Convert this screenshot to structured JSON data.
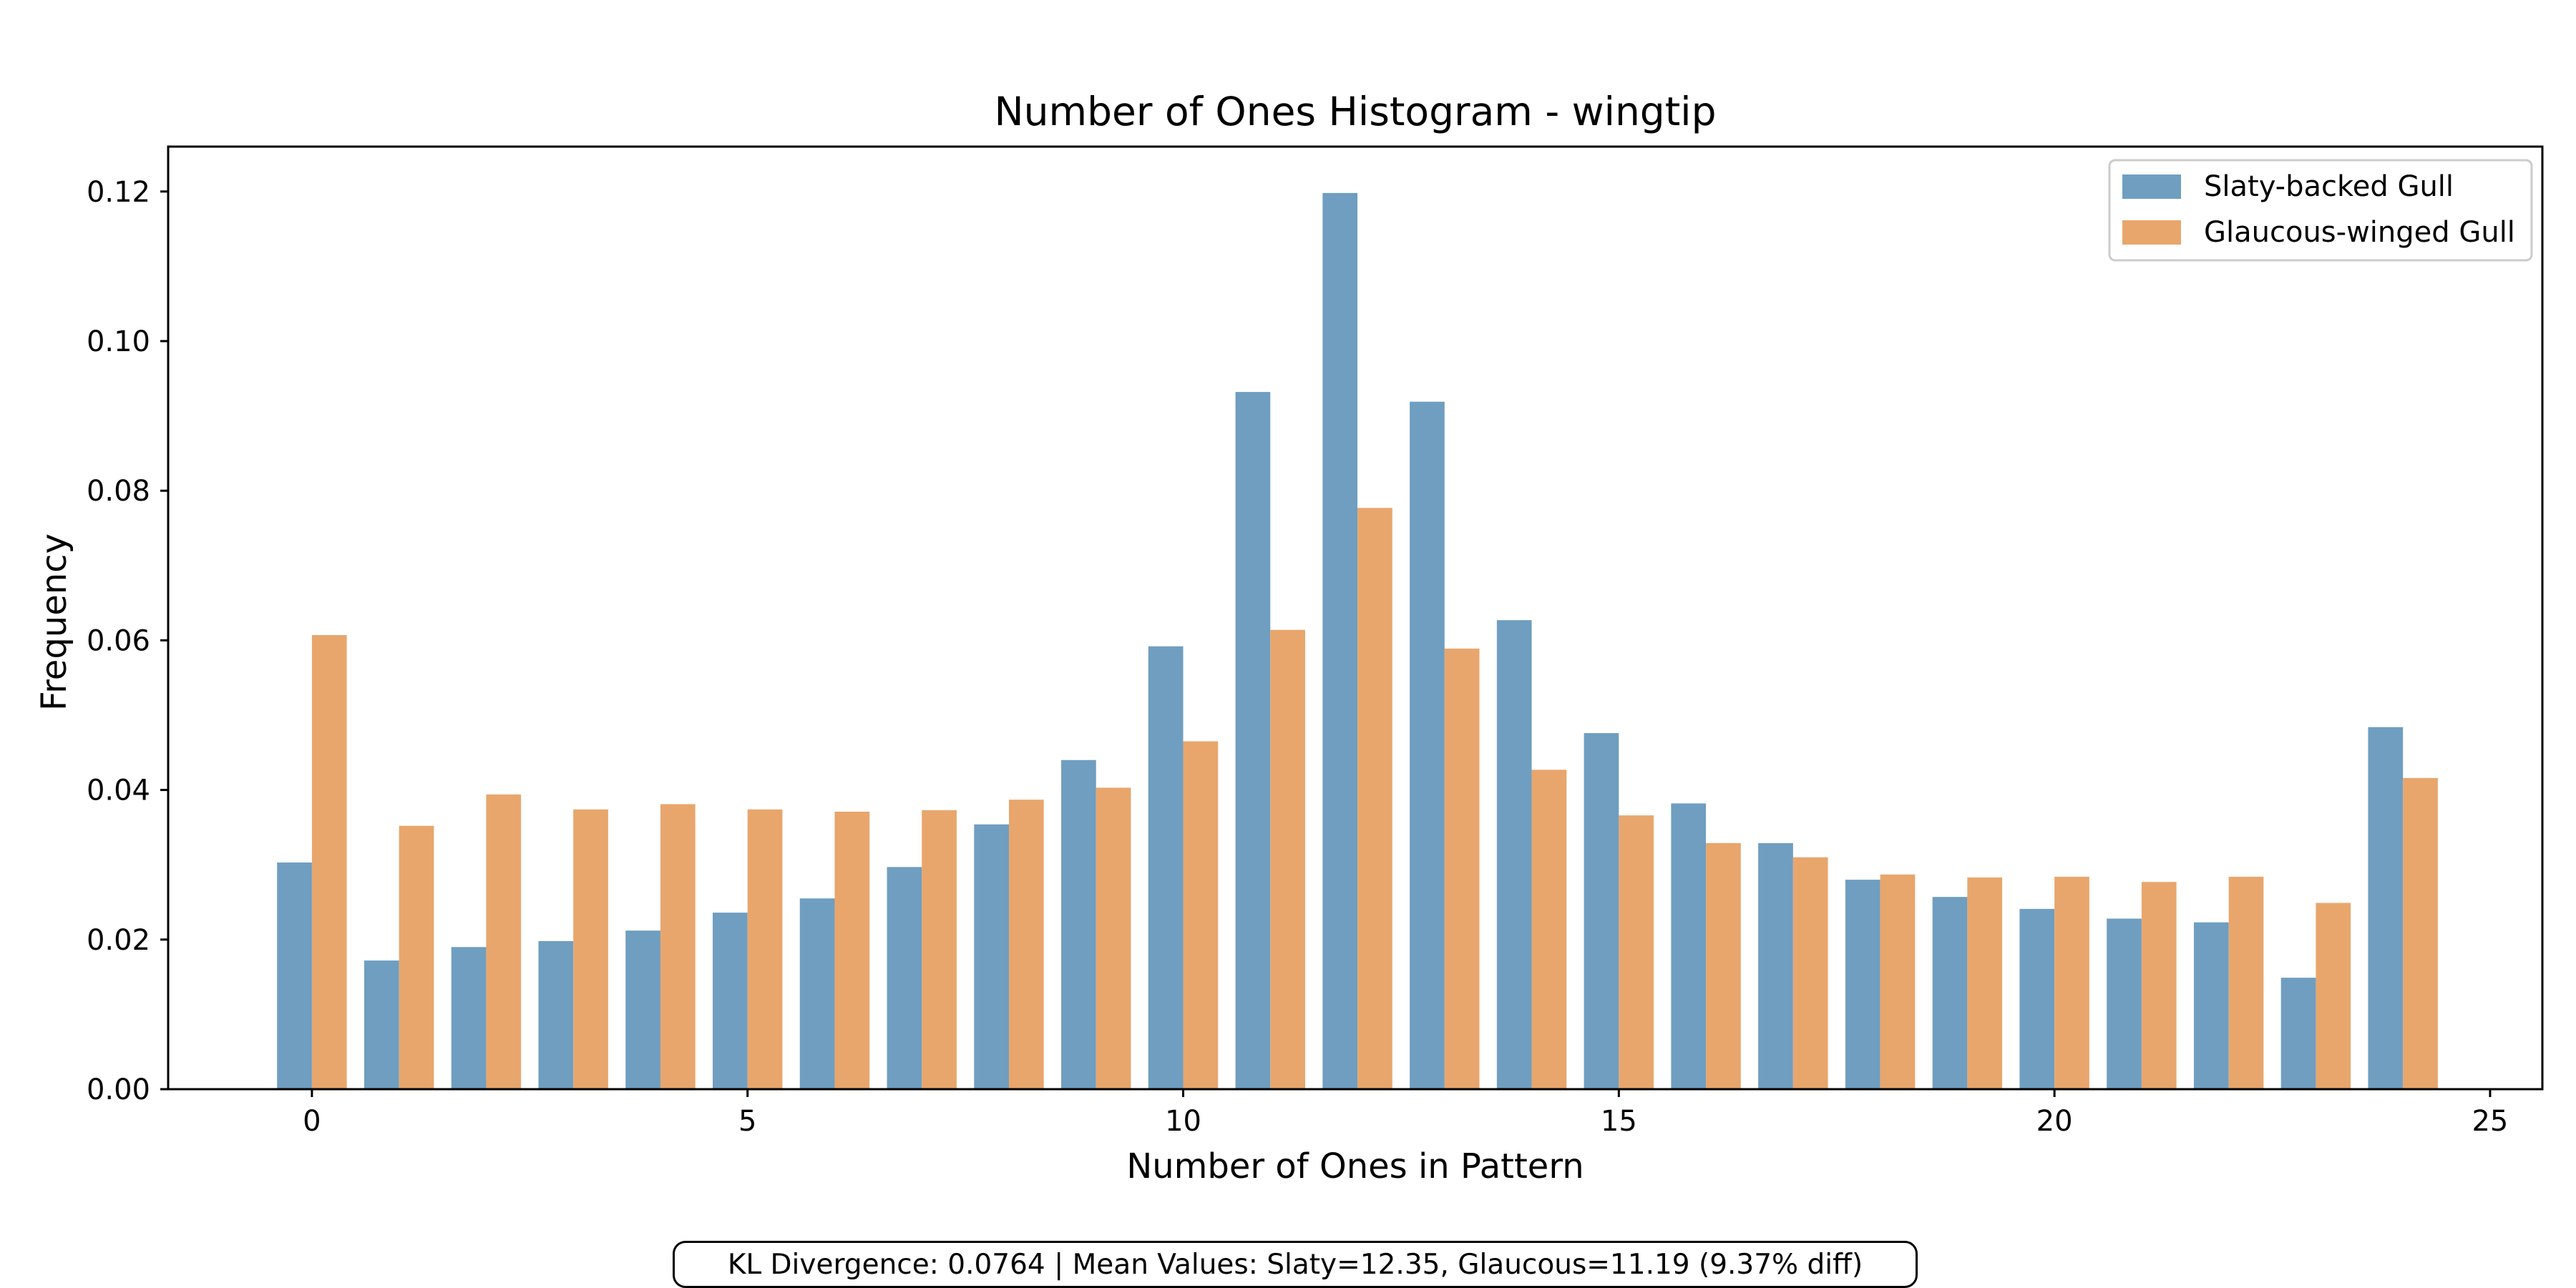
{
  "chart_data": {
    "type": "bar",
    "title": "Number of Ones Histogram - wingtip",
    "xlabel": "Number of Ones in Pattern",
    "ylabel": "Frequency",
    "x": [
      0,
      1,
      2,
      3,
      4,
      5,
      6,
      7,
      8,
      9,
      10,
      11,
      12,
      13,
      14,
      15,
      16,
      17,
      18,
      19,
      20,
      21,
      22,
      23,
      24
    ],
    "xlim": [
      -1.65,
      25.6
    ],
    "ylim": [
      0,
      0.126
    ],
    "xticks": [
      0,
      5,
      10,
      15,
      20,
      25
    ],
    "xtick_labels": [
      "0",
      "5",
      "10",
      "15",
      "20",
      "25"
    ],
    "yticks": [
      0,
      0.02,
      0.04,
      0.06,
      0.08,
      0.1,
      0.12
    ],
    "ytick_labels": [
      "0.00",
      "0.02",
      "0.04",
      "0.06",
      "0.08",
      "0.10",
      "0.12"
    ],
    "grid": false,
    "legend_position": "top-right",
    "series": [
      {
        "name": "Slaty-backed Gull",
        "color": "#6f9ec0",
        "values": [
          0.0303,
          0.0172,
          0.019,
          0.0198,
          0.0212,
          0.0236,
          0.0255,
          0.0297,
          0.0354,
          0.044,
          0.0592,
          0.0932,
          0.1198,
          0.0919,
          0.0627,
          0.0476,
          0.0382,
          0.0329,
          0.028,
          0.0257,
          0.0241,
          0.0228,
          0.0223,
          0.0149,
          0.0484
        ]
      },
      {
        "name": "Glaucous-winged Gull",
        "color": "#e8a66c",
        "values": [
          0.0607,
          0.0352,
          0.0394,
          0.0374,
          0.0381,
          0.0374,
          0.0371,
          0.0373,
          0.0387,
          0.0403,
          0.0465,
          0.0614,
          0.0777,
          0.0589,
          0.0427,
          0.0366,
          0.0329,
          0.031,
          0.0287,
          0.0283,
          0.0284,
          0.0277,
          0.0284,
          0.0249,
          0.0416
        ]
      }
    ]
  },
  "footnote": "KL Divergence: 0.0764 | Mean Values: Slaty=12.35, Glaucous=11.19 (9.37% diff)"
}
